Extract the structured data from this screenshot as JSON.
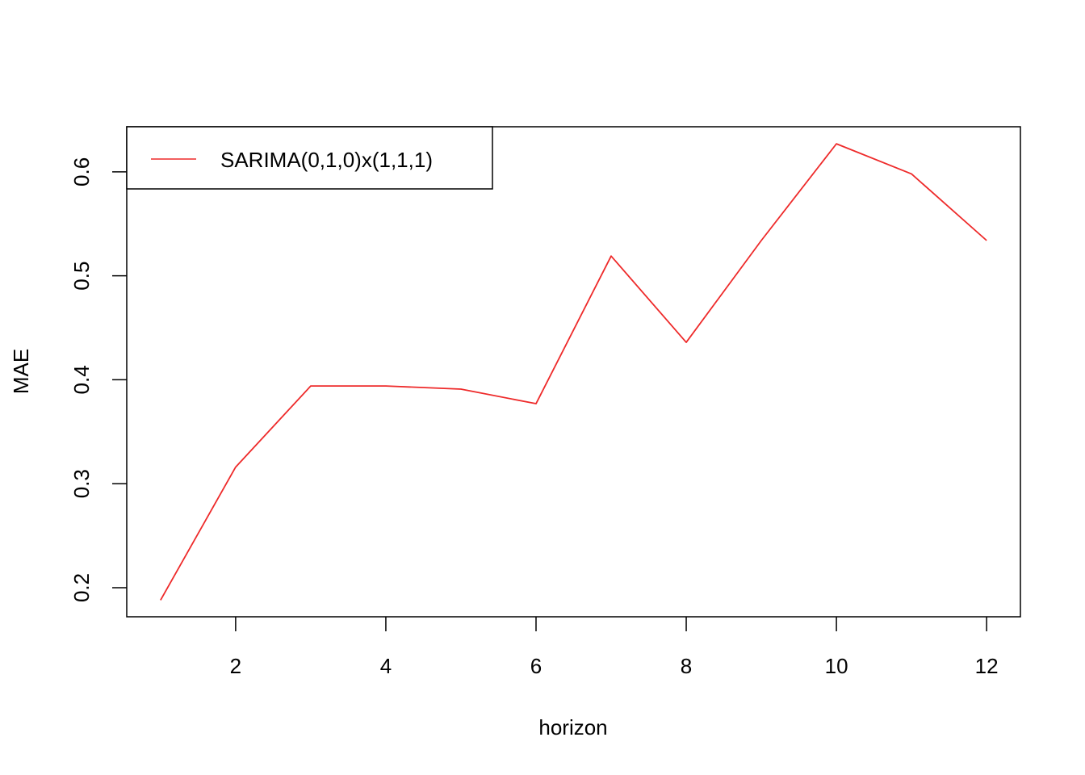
{
  "chart_data": {
    "type": "line",
    "xlabel": "horizon",
    "ylabel": "MAE",
    "xlim": [
      0.55,
      12.45
    ],
    "ylim": [
      0.172,
      0.6434
    ],
    "x_ticks": [
      2,
      4,
      6,
      8,
      10,
      12
    ],
    "y_ticks": [
      0.2,
      0.3,
      0.4,
      0.5,
      0.6
    ],
    "x_tick_labels": [
      "2",
      "4",
      "6",
      "8",
      "10",
      "12"
    ],
    "y_tick_labels": [
      "0.2",
      "0.3",
      "0.4",
      "0.5",
      "0.6"
    ],
    "legend_position": "top-left",
    "grid": false,
    "series": [
      {
        "name": "SARIMA(0,1,0)x(1,1,1)",
        "color": "#ee2a2a",
        "x": [
          1,
          2,
          3,
          4,
          5,
          6,
          7,
          8,
          9,
          10,
          11,
          12
        ],
        "y": [
          0.188,
          0.316,
          0.394,
          0.394,
          0.391,
          0.377,
          0.519,
          0.436,
          0.534,
          0.627,
          0.598,
          0.534
        ]
      }
    ]
  }
}
